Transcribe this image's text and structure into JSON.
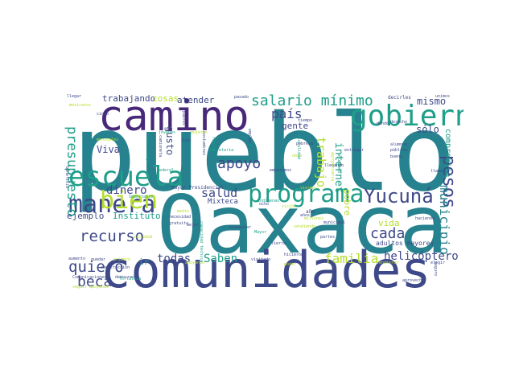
{
  "palette": {
    "purple": "#482878",
    "navy": "#3e4989",
    "blue": "#31688e",
    "teal": "#26828e",
    "green": "#1f9e89",
    "lime": "#b5de2b",
    "lightgreen": "#6ece58"
  },
  "words": [
    {
      "text": "pueblo",
      "color": "teal"
    },
    {
      "text": "Oaxaca",
      "color": "teal"
    },
    {
      "text": "comunidades",
      "color": "navy"
    },
    {
      "text": "camino",
      "color": "purple"
    },
    {
      "text": "gobierno",
      "color": "green"
    },
    {
      "text": "escuela",
      "color": "green"
    },
    {
      "text": "programa",
      "color": "green"
    },
    {
      "text": "Yucuná",
      "color": "navy"
    },
    {
      "text": "manera",
      "color": "navy"
    },
    {
      "text": "bien",
      "color": "lime"
    },
    {
      "text": "salario mínimo",
      "color": "green"
    },
    {
      "text": "pesos",
      "color": "navy"
    },
    {
      "text": "apoyo",
      "color": "navy"
    },
    {
      "text": "cada",
      "color": "navy"
    },
    {
      "text": "municipio",
      "color": "teal"
    },
    {
      "text": "presupuesto",
      "color": "green"
    },
    {
      "text": "recurso",
      "color": "navy"
    },
    {
      "text": "quiero",
      "color": "navy"
    },
    {
      "text": "beca",
      "color": "navy"
    },
    {
      "text": "familia",
      "color": "lime"
    },
    {
      "text": "helicóptero",
      "color": "navy"
    },
    {
      "text": "salud",
      "color": "navy"
    },
    {
      "text": "trabajo",
      "color": "lime"
    },
    {
      "text": "país",
      "color": "navy"
    },
    {
      "text": "dinero",
      "color": "navy"
    },
    {
      "text": "todas",
      "color": "navy"
    },
    {
      "text": "Saben",
      "color": "green"
    },
    {
      "text": "mismo",
      "color": "navy"
    },
    {
      "text": "sólo",
      "color": "navy"
    },
    {
      "text": "internet",
      "color": "green"
    },
    {
      "text": "trabajando",
      "color": "navy"
    },
    {
      "text": "cosas",
      "color": "lime"
    },
    {
      "text": "atender",
      "color": "navy"
    },
    {
      "text": "Viva",
      "color": "navy"
    },
    {
      "text": "Instituto",
      "color": "green"
    },
    {
      "text": "ejemplo",
      "color": "navy"
    },
    {
      "text": "gente",
      "color": "navy"
    },
    {
      "text": "gusto",
      "color": "navy"
    },
    {
      "text": "vida",
      "color": "lime"
    },
    {
      "text": "pobre",
      "color": "lime"
    },
    {
      "text": "compromiso",
      "color": "green"
    },
    {
      "text": "Mixteca",
      "color": "navy"
    },
    {
      "text": "adultos mayores",
      "color": "navy"
    },
    {
      "text": "ir",
      "color": "green"
    },
    {
      "text": "Mayor Presidencial",
      "color": "navy"
    },
    {
      "text": "año",
      "color": "navy"
    },
    {
      "text": "decirles",
      "color": "navy"
    },
    {
      "text": "pasado",
      "color": "navy"
    },
    {
      "text": "cinco",
      "color": "navy"
    },
    {
      "text": "padres",
      "color": "navy"
    },
    {
      "text": "lujo",
      "color": "navy"
    },
    {
      "text": "jóvenes",
      "color": "green"
    },
    {
      "text": "mujeres",
      "color": "lime"
    },
    {
      "text": "costumbres",
      "color": "navy"
    },
    {
      "text": "región",
      "color": "green"
    },
    {
      "text": "empleo",
      "color": "navy"
    },
    {
      "text": "pobreza",
      "color": "navy"
    },
    {
      "text": "tiempo",
      "color": "navy"
    },
    {
      "text": "llegando",
      "color": "navy"
    },
    {
      "text": "entregar",
      "color": "navy"
    },
    {
      "text": "ayudando",
      "color": "green"
    },
    {
      "text": "Secretaría",
      "color": "green"
    },
    {
      "text": "Federal",
      "color": "green"
    },
    {
      "text": "mensuales",
      "color": "lime"
    },
    {
      "text": "buena",
      "color": "navy"
    },
    {
      "text": "Importante",
      "color": "green"
    },
    {
      "text": "necesidad",
      "color": "navy"
    },
    {
      "text": "gratuito",
      "color": "navy"
    },
    {
      "text": "mejor",
      "color": "navy"
    },
    {
      "text": "bienestar",
      "color": "navy"
    },
    {
      "text": "indígenas",
      "color": "green"
    },
    {
      "text": "millones",
      "color": "lime"
    },
    {
      "text": "tierra",
      "color": "navy"
    },
    {
      "text": "municipal",
      "color": "navy"
    },
    {
      "text": "viernes",
      "color": "lime"
    },
    {
      "text": "llegar",
      "color": "navy"
    },
    {
      "text": "beneficio",
      "color": "navy"
    },
    {
      "text": "mexicanos",
      "color": "lime"
    },
    {
      "text": "aumento",
      "color": "navy"
    },
    {
      "text": "quedar",
      "color": "navy"
    },
    {
      "text": "primero",
      "color": "lime"
    },
    {
      "text": "construcción",
      "color": "navy"
    },
    {
      "text": "Comunicaciones",
      "color": "navy"
    },
    {
      "text": "democracia",
      "color": "navy"
    },
    {
      "text": "seguir apoyando",
      "color": "lime"
    },
    {
      "text": "fortaleza",
      "color": "green"
    },
    {
      "text": "visitado",
      "color": "navy"
    },
    {
      "text": "hicieron",
      "color": "navy"
    },
    {
      "text": "poder",
      "color": "lime"
    },
    {
      "text": "aprovecho",
      "color": "navy"
    },
    {
      "text": "haciendo",
      "color": "navy"
    },
    {
      "text": "vendiendo",
      "color": "lime"
    },
    {
      "text": "partes",
      "color": "navy"
    },
    {
      "text": "unimos",
      "color": "navy"
    },
    {
      "text": "alumnos",
      "color": "navy"
    },
    {
      "text": "pública",
      "color": "navy"
    },
    {
      "text": "llama",
      "color": "navy"
    },
    {
      "text": "dando",
      "color": "navy"
    },
    {
      "text": "derecho",
      "color": "navy"
    },
    {
      "text": "seguro",
      "color": "navy"
    },
    {
      "text": "sociedad",
      "color": "lime"
    },
    {
      "text": "ocho",
      "color": "navy"
    },
    {
      "text": "años",
      "color": "navy"
    },
    {
      "text": "obra",
      "color": "lime"
    },
    {
      "text": "empezamos",
      "color": "navy"
    },
    {
      "text": "pluralidad",
      "color": "green"
    },
    {
      "text": "camioneta",
      "color": "navy"
    },
    {
      "text": "apoyando",
      "color": "lime"
    },
    {
      "text": "visión",
      "color": "lime"
    },
    {
      "text": "medio",
      "color": "lime"
    },
    {
      "text": "elegir",
      "color": "navy"
    },
    {
      "text": "Mayor",
      "color": "green"
    },
    {
      "text": "vendieron",
      "color": "lime"
    },
    {
      "text": "salario campo",
      "color": "green"
    },
    {
      "text": "agropecuaria",
      "color": "lime"
    },
    {
      "text": "capacidad técnica",
      "color": "green"
    }
  ]
}
